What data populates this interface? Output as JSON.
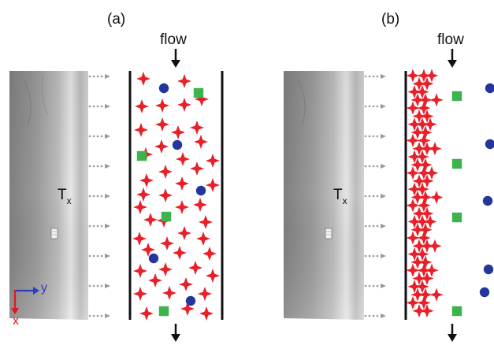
{
  "panels": [
    {
      "id": "a",
      "label": "(a)",
      "flow_label": "flow",
      "photo_label_main": "T",
      "photo_label_sub": "x",
      "marker_note": "stars distributed throughout channel; circles and squares interspersed"
    },
    {
      "id": "b",
      "label": "(b)",
      "flow_label": "flow",
      "photo_label_main": "T",
      "photo_label_sub": "x",
      "marker_note": "stars packed against left wall; squares in a column; circles at far right edge"
    }
  ],
  "axes": {
    "y_label": "y",
    "x_label": "x",
    "y_color": "#2a3fbf",
    "x_color": "#e0191f"
  },
  "colors": {
    "star": "#e8202a",
    "circle": "#24369b",
    "square": "#3cb44b",
    "wall": "#111111",
    "arrow_dots": "#999999"
  },
  "icons": {
    "star": "four-point-star-icon",
    "circle": "circle-icon",
    "square": "square-icon",
    "flow_arrow": "arrow-down-icon"
  }
}
